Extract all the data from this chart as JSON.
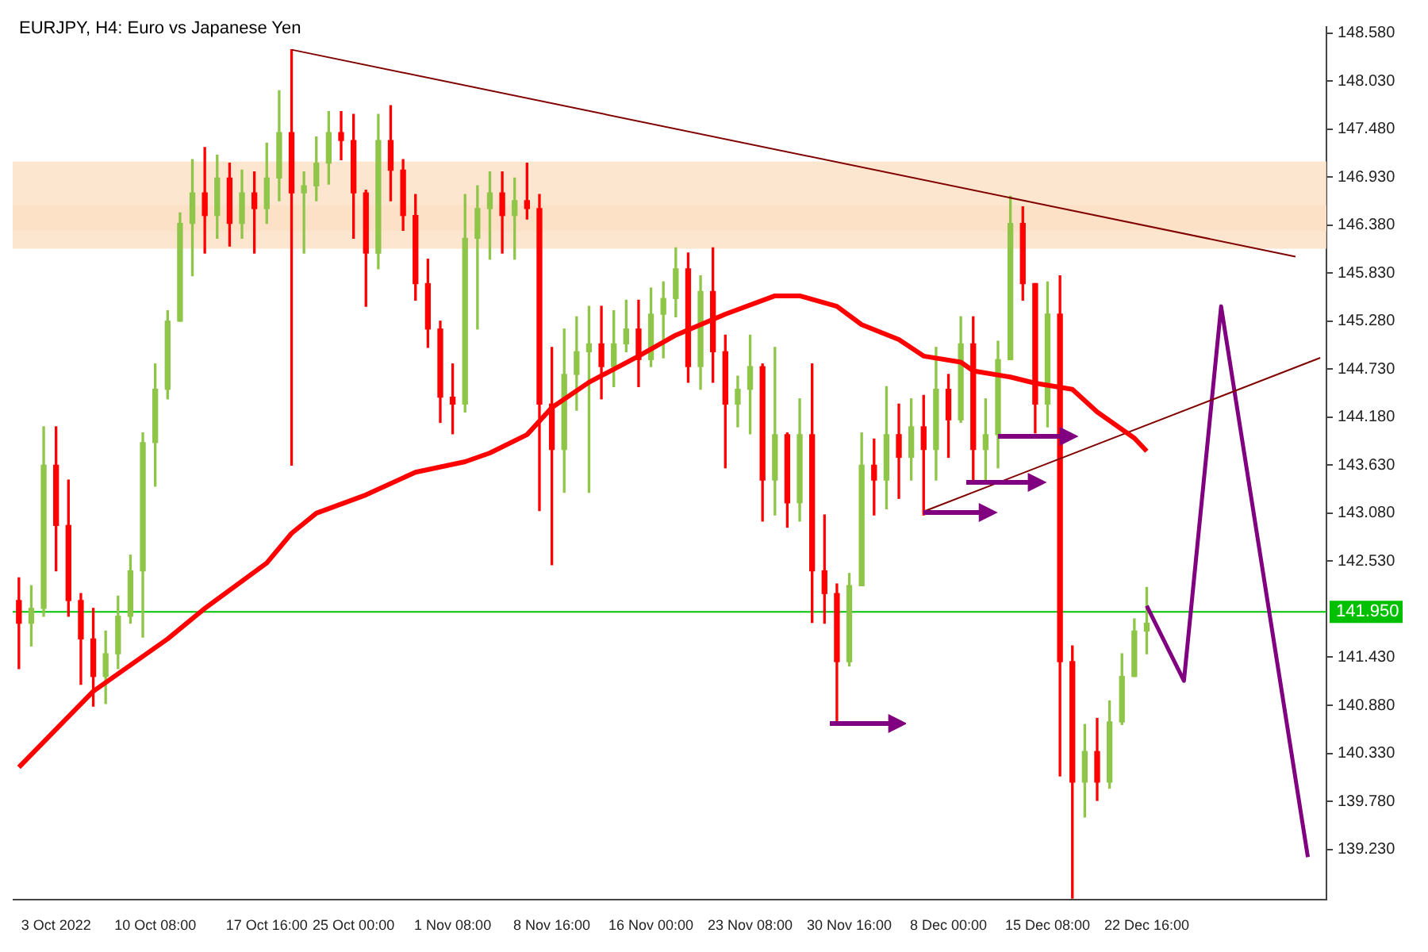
{
  "chart_data": {
    "type": "candlestick",
    "title": "EURJPY, H4: Euro vs Japanese Yen",
    "categories": [
      null,
      null,
      null,
      "3 Oct 2022",
      null,
      null,
      null,
      null,
      null,
      null,
      null,
      "10 Oct 08:00",
      null,
      null,
      null,
      null,
      null,
      null,
      null,
      null,
      "17 Oct 16:00",
      null,
      null,
      null,
      null,
      null,
      null,
      "25 Oct 00:00",
      null,
      null,
      null,
      null,
      null,
      null,
      null,
      "1 Nov 08:00",
      null,
      null,
      null,
      null,
      null,
      null,
      null,
      "8 Nov 16:00",
      null,
      null,
      null,
      null,
      null,
      null,
      null,
      "16 Nov 00:00",
      null,
      null,
      null,
      null,
      null,
      null,
      null,
      "23 Nov 08:00",
      null,
      null,
      null,
      null,
      null,
      null,
      null,
      "30 Nov 16:00",
      null,
      null,
      null,
      null,
      null,
      null,
      null,
      "8 Dec 00:00",
      null,
      null,
      null,
      null,
      null,
      null,
      null,
      "15 Dec 08:00",
      null,
      null,
      null,
      null,
      null,
      null,
      null,
      "22 Dec 16:00",
      null,
      null,
      null,
      null,
      null,
      null,
      null,
      null,
      null,
      null,
      null,
      null,
      null,
      null
    ],
    "ohlc": [
      [
        142.08,
        142.34,
        141.3,
        141.82
      ],
      [
        141.82,
        142.25,
        141.56,
        141.99
      ],
      [
        141.99,
        144.07,
        141.9,
        143.63
      ],
      [
        143.63,
        144.07,
        142.42,
        142.94
      ],
      [
        142.94,
        143.46,
        141.9,
        142.08
      ],
      [
        142.08,
        142.16,
        141.12,
        141.64
      ],
      [
        141.64,
        141.99,
        140.87,
        141.21
      ],
      [
        141.21,
        141.73,
        140.9,
        141.47
      ],
      [
        141.47,
        142.13,
        141.3,
        141.9
      ],
      [
        141.9,
        142.6,
        141.82,
        142.42
      ],
      [
        142.42,
        144.0,
        141.66,
        143.89
      ],
      [
        143.89,
        144.79,
        143.39,
        144.5
      ],
      [
        144.5,
        145.4,
        144.39,
        145.28
      ],
      [
        145.28,
        146.52,
        145.28,
        146.4
      ],
      [
        146.4,
        147.13,
        145.8,
        146.75
      ],
      [
        146.75,
        147.27,
        146.06,
        146.49
      ],
      [
        146.49,
        147.18,
        146.23,
        146.92
      ],
      [
        146.92,
        147.09,
        146.14,
        146.4
      ],
      [
        146.4,
        147.01,
        146.23,
        146.75
      ],
      [
        146.75,
        146.99,
        146.06,
        146.57
      ],
      [
        146.57,
        147.32,
        146.4,
        146.92
      ],
      [
        146.92,
        147.92,
        146.66,
        147.44
      ],
      [
        147.44,
        148.39,
        143.63,
        146.75
      ],
      [
        146.75,
        146.99,
        146.06,
        146.83
      ],
      [
        146.83,
        147.39,
        146.66,
        147.09
      ],
      [
        147.09,
        147.68,
        146.85,
        147.44
      ],
      [
        147.44,
        147.68,
        147.13,
        147.35
      ],
      [
        147.35,
        147.65,
        146.23,
        146.75
      ],
      [
        146.75,
        146.78,
        145.45,
        146.06
      ],
      [
        146.06,
        147.65,
        145.88,
        147.35
      ],
      [
        147.35,
        147.75,
        146.66,
        147.01
      ],
      [
        147.01,
        147.13,
        146.32,
        146.49
      ],
      [
        146.49,
        146.73,
        145.52,
        145.71
      ],
      [
        145.71,
        145.99,
        144.98,
        145.19
      ],
      [
        145.19,
        145.28,
        144.12,
        144.41
      ],
      [
        144.41,
        144.79,
        143.99,
        144.33
      ],
      [
        144.33,
        146.73,
        144.24,
        146.23
      ],
      [
        146.23,
        146.83,
        145.19,
        146.57
      ],
      [
        146.57,
        146.99,
        145.99,
        146.75
      ],
      [
        146.75,
        146.99,
        146.06,
        146.49
      ],
      [
        146.49,
        146.92,
        145.99,
        146.66
      ],
      [
        146.66,
        147.09,
        146.45,
        146.57
      ],
      [
        146.57,
        146.73,
        143.11,
        144.33
      ],
      [
        144.33,
        144.98,
        142.49,
        143.81
      ],
      [
        143.81,
        145.19,
        143.32,
        144.67
      ],
      [
        144.67,
        145.33,
        144.26,
        144.93
      ],
      [
        144.93,
        145.45,
        143.32,
        145.02
      ],
      [
        145.02,
        145.45,
        144.39,
        144.76
      ],
      [
        144.76,
        145.4,
        144.53,
        145.02
      ],
      [
        145.02,
        145.52,
        144.93,
        145.19
      ],
      [
        145.19,
        145.52,
        144.53,
        144.84
      ],
      [
        144.84,
        145.66,
        144.76,
        145.36
      ],
      [
        145.36,
        145.73,
        144.86,
        145.54
      ],
      [
        145.54,
        146.12,
        145.33,
        145.88
      ],
      [
        145.88,
        146.06,
        144.58,
        144.76
      ],
      [
        144.76,
        145.8,
        144.5,
        145.62
      ],
      [
        145.62,
        146.12,
        144.58,
        144.93
      ],
      [
        144.93,
        145.12,
        143.6,
        144.33
      ],
      [
        144.33,
        144.65,
        144.07,
        144.5
      ],
      [
        144.5,
        145.12,
        143.99,
        144.76
      ],
      [
        144.76,
        144.79,
        142.99,
        143.46
      ],
      [
        143.46,
        144.98,
        143.06,
        143.98
      ],
      [
        143.98,
        144.0,
        142.92,
        143.2
      ],
      [
        143.2,
        144.39,
        142.99,
        143.98
      ],
      [
        143.98,
        144.79,
        141.83,
        142.42
      ],
      [
        142.42,
        143.06,
        141.82,
        142.16
      ],
      [
        142.16,
        142.27,
        140.66,
        141.38
      ],
      [
        141.38,
        142.39,
        141.33,
        142.25
      ],
      [
        142.25,
        144.0,
        142.25,
        143.63
      ],
      [
        143.63,
        143.93,
        143.06,
        143.46
      ],
      [
        143.46,
        144.53,
        143.13,
        143.98
      ],
      [
        143.98,
        144.33,
        143.25,
        143.72
      ],
      [
        143.72,
        144.39,
        143.46,
        144.07
      ],
      [
        144.07,
        144.43,
        143.06,
        143.81
      ],
      [
        143.81,
        144.98,
        143.46,
        144.5
      ],
      [
        144.5,
        144.67,
        143.72,
        144.15
      ],
      [
        144.15,
        145.33,
        144.12,
        145.02
      ],
      [
        145.02,
        145.33,
        143.46,
        143.81
      ],
      [
        143.81,
        144.39,
        143.46,
        143.98
      ],
      [
        143.98,
        145.05,
        143.6,
        144.84
      ],
      [
        144.84,
        146.71,
        144.84,
        146.4
      ],
      [
        146.4,
        146.59,
        145.52,
        145.71
      ],
      [
        145.71,
        145.71,
        144.0,
        144.33
      ],
      [
        144.33,
        145.73,
        144.07,
        145.36
      ],
      [
        145.36,
        145.8,
        140.07,
        141.38
      ],
      [
        141.38,
        141.56,
        138.67,
        140.0
      ],
      [
        140.0,
        140.66,
        139.6,
        140.35
      ],
      [
        140.35,
        140.73,
        139.79,
        140.0
      ],
      [
        140.0,
        140.93,
        139.93,
        140.69
      ],
      [
        140.69,
        141.47,
        140.66,
        141.21
      ],
      [
        141.21,
        141.87,
        141.21,
        141.73
      ],
      [
        141.73,
        142.23,
        141.47,
        141.82
      ],
      null,
      null,
      null,
      null,
      null,
      null,
      null,
      null,
      null,
      null,
      null,
      null,
      null,
      null
    ],
    "colors": [
      "#ff0000",
      "#8fc549",
      "#8fc549",
      "#ff0000",
      "#ff0000",
      "#ff0000",
      "#ff0000",
      "#8fc549",
      "#8fc549",
      "#8fc549",
      "#8fc549",
      "#8fc549",
      "#8fc549",
      "#8fc549",
      "#8fc549",
      "#ff0000",
      "#8fc549",
      "#ff0000",
      "#8fc549",
      "#ff0000",
      "#8fc549",
      "#8fc549",
      "#ff0000",
      "#8fc549",
      "#8fc549",
      "#8fc549",
      "#ff0000",
      "#ff0000",
      "#ff0000",
      "#8fc549",
      "#ff0000",
      "#ff0000",
      "#ff0000",
      "#ff0000",
      "#ff0000",
      "#ff0000",
      "#8fc549",
      "#8fc549",
      "#8fc549",
      "#ff0000",
      "#8fc549",
      "#ff0000",
      "#ff0000",
      "#ff0000",
      "#8fc549",
      "#8fc549",
      "#8fc549",
      "#ff0000",
      "#8fc549",
      "#8fc549",
      "#ff0000",
      "#8fc549",
      "#8fc549",
      "#8fc549",
      "#ff0000",
      "#8fc549",
      "#ff0000",
      "#ff0000",
      "#8fc549",
      "#8fc549",
      "#ff0000",
      "#8fc549",
      "#ff0000",
      "#8fc549",
      "#ff0000",
      "#ff0000",
      "#ff0000",
      "#8fc549",
      "#8fc549",
      "#ff0000",
      "#8fc549",
      "#ff0000",
      "#8fc549",
      "#ff0000",
      "#8fc549",
      "#ff0000",
      "#8fc549",
      "#ff0000",
      "#8fc549",
      "#8fc549",
      "#8fc549",
      "#ff0000",
      "#ff0000",
      "#8fc549",
      "#ff0000",
      "#ff0000",
      "#8fc549",
      "#ff0000",
      "#8fc549",
      "#8fc549",
      "#8fc549",
      "#8fc549",
      null,
      null,
      null,
      null,
      null,
      null,
      null,
      null,
      null,
      null,
      null,
      null,
      null,
      null
    ],
    "series": [
      {
        "type": "line",
        "color": "#ff0000",
        "values": [
          140.17,
          null,
          null,
          null,
          null,
          null,
          141.04,
          null,
          null,
          null,
          null,
          null,
          141.64,
          null,
          null,
          141.99,
          null,
          null,
          null,
          null,
          142.51,
          null,
          142.85,
          null,
          143.08,
          null,
          null,
          null,
          143.29,
          null,
          null,
          null,
          143.55,
          null,
          null,
          null,
          143.67,
          null,
          143.77,
          null,
          null,
          143.98,
          null,
          144.29,
          null,
          null,
          144.58,
          null,
          null,
          null,
          144.88,
          null,
          null,
          145.12,
          null,
          null,
          null,
          145.36,
          null,
          null,
          null,
          145.57,
          null,
          145.57,
          null,
          null,
          145.45,
          null,
          145.24,
          null,
          null,
          145.07,
          null,
          144.88,
          null,
          null,
          144.81,
          144.71,
          null,
          null,
          144.64,
          null,
          144.57,
          null,
          null,
          144.5,
          null,
          144.24,
          null,
          null,
          143.94,
          143.79,
          null,
          null,
          null,
          null,
          null,
          null,
          null,
          null,
          null,
          null,
          null,
          null,
          null,
          null
        ]
      },
      {
        "type": "line",
        "color": "#800000",
        "values": [
          null,
          null,
          null,
          null,
          null,
          null,
          null,
          null,
          null,
          null,
          null,
          null,
          null,
          null,
          null,
          null,
          null,
          null,
          null,
          null,
          null,
          null,
          148.39,
          null,
          null,
          null,
          null,
          null,
          null,
          null,
          null,
          null,
          null,
          null,
          null,
          null,
          null,
          null,
          null,
          null,
          null,
          null,
          null,
          null,
          null,
          null,
          null,
          null,
          null,
          null,
          null,
          null,
          null,
          null,
          null,
          null,
          null,
          null,
          null,
          null,
          null,
          null,
          null,
          null,
          null,
          null,
          null,
          null,
          null,
          null,
          null,
          null,
          null,
          null,
          null,
          null,
          null,
          null,
          null,
          null,
          null,
          null,
          null,
          null,
          null,
          null,
          null,
          null,
          null,
          null,
          null,
          null,
          null,
          null,
          null,
          null,
          null,
          null,
          null,
          null,
          null,
          null,
          null,
          146.02,
          null,
          null
        ]
      },
      {
        "type": "line",
        "color": "#800000",
        "values": [
          null,
          null,
          null,
          null,
          null,
          null,
          null,
          null,
          null,
          null,
          null,
          null,
          null,
          null,
          null,
          null,
          null,
          null,
          null,
          null,
          null,
          null,
          null,
          null,
          null,
          null,
          null,
          null,
          null,
          null,
          null,
          null,
          null,
          null,
          null,
          null,
          null,
          null,
          null,
          null,
          null,
          null,
          null,
          null,
          null,
          null,
          null,
          null,
          null,
          null,
          null,
          null,
          null,
          null,
          null,
          null,
          null,
          null,
          null,
          null,
          null,
          null,
          null,
          null,
          null,
          null,
          null,
          null,
          null,
          null,
          null,
          null,
          null,
          143.1,
          null,
          null,
          null,
          null,
          null,
          null,
          null,
          null,
          null,
          null,
          null,
          null,
          null,
          null,
          null,
          null,
          null,
          null,
          null,
          null,
          null,
          null,
          null,
          null,
          null,
          null,
          null,
          null,
          null,
          null,
          null,
          144.86
        ]
      },
      {
        "type": "line",
        "color": "#800080",
        "values": [
          null,
          null,
          null,
          null,
          null,
          null,
          null,
          null,
          null,
          null,
          null,
          null,
          null,
          null,
          null,
          null,
          null,
          null,
          null,
          null,
          null,
          null,
          null,
          null,
          null,
          null,
          null,
          null,
          null,
          null,
          null,
          null,
          null,
          null,
          null,
          null,
          null,
          null,
          null,
          null,
          null,
          null,
          null,
          null,
          null,
          null,
          null,
          null,
          null,
          null,
          null,
          null,
          null,
          null,
          null,
          null,
          null,
          null,
          null,
          null,
          null,
          null,
          null,
          null,
          null,
          null,
          null,
          null,
          null,
          null,
          null,
          null,
          null,
          null,
          null,
          null,
          null,
          null,
          null,
          null,
          null,
          null,
          null,
          null,
          null,
          null,
          null,
          null,
          null,
          null,
          null,
          142.02,
          null,
          null,
          141.16,
          null,
          null,
          145.45,
          null,
          null,
          null,
          null,
          null,
          null,
          139.14,
          null
        ]
      }
    ],
    "ylim": [
      138.65,
      148.65
    ],
    "yticks": [
      {
        "value": 139.23,
        "label": "139.230"
      },
      {
        "value": 139.78,
        "label": "139.780"
      },
      {
        "value": 140.33,
        "label": "140.330"
      },
      {
        "value": 140.88,
        "label": "140.880"
      },
      {
        "value": 141.43,
        "label": "141.430"
      },
      {
        "value": 142.53,
        "label": "142.530"
      },
      {
        "value": 143.08,
        "label": "143.080"
      },
      {
        "value": 143.63,
        "label": "143.630"
      },
      {
        "value": 144.18,
        "label": "144.180"
      },
      {
        "value": 144.73,
        "label": "144.730"
      },
      {
        "value": 145.28,
        "label": "145.280"
      },
      {
        "value": 145.83,
        "label": "145.830"
      },
      {
        "value": 146.38,
        "label": "146.380"
      },
      {
        "value": 146.93,
        "label": "146.930"
      },
      {
        "value": 147.48,
        "label": "147.480"
      },
      {
        "value": 148.03,
        "label": "148.030"
      },
      {
        "value": 148.58,
        "label": "148.580"
      }
    ],
    "ref_lines": [
      {
        "axis": "y",
        "value": 141.95,
        "label": "141.950",
        "color": "#00c000"
      }
    ],
    "bands": [
      {
        "axis": "y",
        "from": 146.31,
        "to": 147.11,
        "color": "#fde0c4"
      },
      {
        "axis": "y",
        "from": 146.11,
        "to": 146.61,
        "color": "#fde0c4"
      }
    ],
    "grid": false,
    "legend": false
  }
}
